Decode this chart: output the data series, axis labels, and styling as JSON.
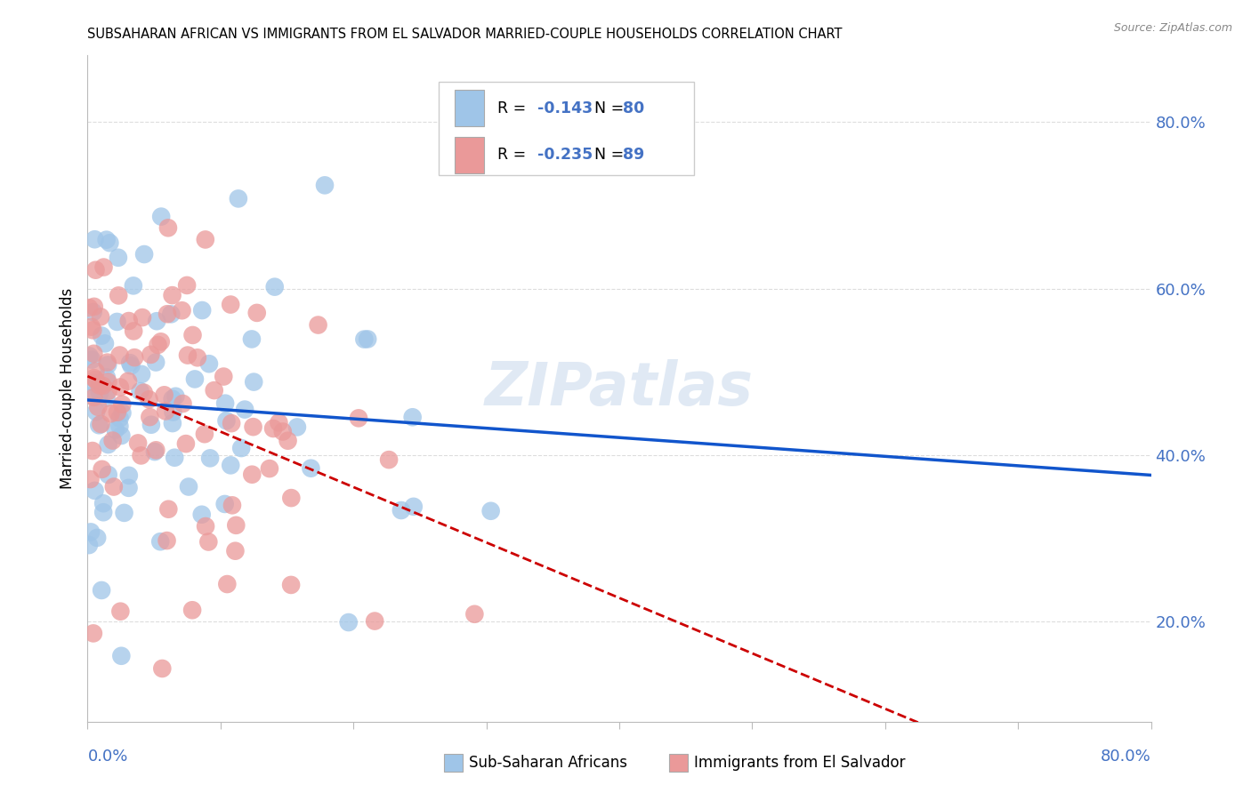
{
  "title": "SUBSAHARAN AFRICAN VS IMMIGRANTS FROM EL SALVADOR MARRIED-COUPLE HOUSEHOLDS CORRELATION CHART",
  "source": "Source: ZipAtlas.com",
  "ylabel": "Married-couple Households",
  "yaxis_labels": [
    "20.0%",
    "40.0%",
    "60.0%",
    "80.0%"
  ],
  "yaxis_values": [
    0.2,
    0.4,
    0.6,
    0.8
  ],
  "xlim": [
    0.0,
    0.8
  ],
  "ylim": [
    0.08,
    0.88
  ],
  "legend1_r": "-0.143",
  "legend1_n": "80",
  "legend2_r": "-0.235",
  "legend2_n": "89",
  "legend1_label": "Sub-Saharan Africans",
  "legend2_label": "Immigrants from El Salvador",
  "blue_color": "#9FC5E8",
  "pink_color": "#EA9999",
  "blue_line_color": "#1155CC",
  "pink_line_color": "#CC0000",
  "watermark": "ZIPatlas",
  "grid_color": "#DDDDDD",
  "background_color": "#FFFFFF",
  "tick_color": "#4472C4",
  "text_color_r": "#4472C4",
  "text_color_n": "#4472C4"
}
